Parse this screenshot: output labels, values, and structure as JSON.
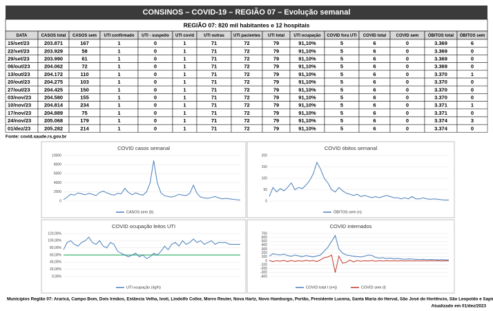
{
  "table": {
    "title": "CONSINOS – COVID-19 – REGIÃO 07 – Evolução semanal",
    "subtitle": "REGIÃO 07: 820 mil habitantes e 12 hospitais",
    "headers": [
      "DATA",
      "CASOS total",
      "CASOS sem",
      "UTI confirmado",
      "UTI - suspeito",
      "UTI covid",
      "UTI outras",
      "UTI pacientes",
      "UTI total",
      "UTI ocupação",
      "COVID fora UTI",
      "COVID total",
      "COVID sem",
      "ÓBITOS total",
      "ÓBITOS sem"
    ],
    "rows": [
      [
        "15/set/23",
        "203.871",
        "167",
        "1",
        "0",
        "1",
        "71",
        "72",
        "79",
        "91,10%",
        "5",
        "6",
        "0",
        "3.369",
        "6"
      ],
      [
        "22/set/23",
        "203.929",
        "58",
        "1",
        "0",
        "1",
        "71",
        "72",
        "79",
        "91,10%",
        "5",
        "6",
        "0",
        "3.369",
        "0"
      ],
      [
        "29/set/23",
        "203.990",
        "61",
        "1",
        "0",
        "1",
        "71",
        "72",
        "79",
        "91,10%",
        "5",
        "6",
        "0",
        "3.369",
        "0"
      ],
      [
        "06/out/23",
        "204.062",
        "72",
        "1",
        "0",
        "1",
        "71",
        "72",
        "79",
        "91,10%",
        "5",
        "6",
        "0",
        "3.369",
        "0"
      ],
      [
        "13/out/23",
        "204.172",
        "110",
        "1",
        "0",
        "1",
        "71",
        "72",
        "79",
        "91,10%",
        "5",
        "6",
        "0",
        "3.370",
        "1"
      ],
      [
        "20/out/23",
        "204.275",
        "103",
        "1",
        "0",
        "1",
        "71",
        "72",
        "79",
        "91,10%",
        "5",
        "6",
        "0",
        "3.370",
        "0"
      ],
      [
        "27/out/23",
        "204.425",
        "150",
        "1",
        "0",
        "1",
        "71",
        "72",
        "79",
        "91,10%",
        "5",
        "6",
        "0",
        "3.370",
        "0"
      ],
      [
        "03/nov/23",
        "204.580",
        "155",
        "1",
        "0",
        "1",
        "71",
        "72",
        "79",
        "91,10%",
        "5",
        "6",
        "0",
        "3.370",
        "0"
      ],
      [
        "10/nov/23",
        "204.814",
        "234",
        "1",
        "0",
        "1",
        "71",
        "72",
        "79",
        "91,10%",
        "5",
        "6",
        "0",
        "3.371",
        "1"
      ],
      [
        "17/nov/23",
        "204.889",
        "75",
        "1",
        "0",
        "1",
        "71",
        "72",
        "79",
        "91,10%",
        "5",
        "6",
        "0",
        "3.371",
        "0"
      ],
      [
        "24/nov/23",
        "205.068",
        "179",
        "1",
        "0",
        "1",
        "71",
        "72",
        "79",
        "91,10%",
        "5",
        "6",
        "0",
        "3.374",
        "3"
      ],
      [
        "01/dez/23",
        "205.282",
        "214",
        "1",
        "0",
        "1",
        "71",
        "72",
        "79",
        "91,10%",
        "5",
        "6",
        "0",
        "3.374",
        "0"
      ]
    ]
  },
  "source": "Fonte: covid.saude.rs.gov.br",
  "chart_data": [
    {
      "type": "line",
      "title": "COVID casos semanal",
      "ylim": [
        0,
        10000
      ],
      "yticks": [
        0,
        2000,
        4000,
        6000,
        8000,
        10000
      ],
      "grid": true,
      "series": [
        {
          "name": "CASOS sem (b)",
          "color": "#4a7ebb",
          "values": [
            300,
            900,
            1500,
            1300,
            1800,
            1600,
            1400,
            1700,
            1500,
            1200,
            1900,
            2200,
            1800,
            1500,
            1300,
            1700,
            1600,
            2800,
            1900,
            1400,
            1800,
            1500,
            1300,
            2000,
            4000,
            8900,
            4000,
            1800,
            1200,
            1000,
            900,
            1100,
            1500,
            1300,
            1200,
            1700,
            3500,
            1700,
            900,
            700,
            600,
            800,
            1000,
            700,
            500,
            600,
            500,
            400,
            300,
            250
          ]
        }
      ]
    },
    {
      "type": "line",
      "title": "COVID óbitos semanal",
      "ylim": [
        0,
        200
      ],
      "yticks": [
        0,
        50,
        100,
        150,
        200
      ],
      "grid": true,
      "series": [
        {
          "name": "ÓBITOS sem (n)",
          "color": "#4a7ebb",
          "values": [
            20,
            60,
            40,
            55,
            45,
            60,
            80,
            50,
            60,
            55,
            70,
            90,
            120,
            170,
            140,
            100,
            80,
            50,
            40,
            60,
            45,
            35,
            30,
            25,
            30,
            20,
            25,
            20,
            15,
            20,
            15,
            20,
            25,
            20,
            15,
            15,
            10,
            15,
            10,
            20,
            10,
            10,
            15,
            10,
            8,
            10,
            8,
            6,
            5,
            5
          ]
        }
      ]
    },
    {
      "type": "line",
      "title": "COVID ocupação leitos UTI",
      "ylim": [
        0,
        120
      ],
      "yticks": [
        {
          "value": 0,
          "label": "0,00%"
        },
        {
          "value": 20,
          "label": "20,00%"
        },
        {
          "value": 40,
          "label": "40,00%"
        },
        {
          "value": 60,
          "label": "60,00%"
        },
        {
          "value": 80,
          "label": "80,00%"
        },
        {
          "value": 100,
          "label": "100,00%"
        },
        {
          "value": 120,
          "label": "120,00%"
        }
      ],
      "grid": true,
      "series": [
        {
          "name": "UTI ocupação (i/g/h)",
          "color": "#4a7ebb",
          "values": [
            75,
            95,
            100,
            90,
            85,
            95,
            100,
            110,
            95,
            90,
            100,
            85,
            80,
            95,
            90,
            70,
            65,
            60,
            55,
            60,
            65,
            55,
            60,
            50,
            55,
            65,
            60,
            70,
            85,
            75,
            90,
            95,
            85,
            100,
            90,
            95,
            105,
            95,
            100,
            90,
            95,
            100,
            90,
            95,
            95,
            95,
            90,
            90,
            90,
            90
          ]
        }
      ],
      "reference": {
        "value": 60,
        "color": "#3cb371"
      }
    },
    {
      "type": "line",
      "title": "COVID internados",
      "ylim": [
        -400,
        700
      ],
      "yticks": [
        -400,
        -300,
        -200,
        -100,
        0,
        100,
        200,
        300,
        400,
        500,
        600,
        700
      ],
      "grid": true,
      "series": [
        {
          "name": "COVID total t (e+j)",
          "color": "#4a7ebb",
          "values": [
            120,
            180,
            160,
            150,
            170,
            140,
            120,
            150,
            130,
            110,
            140,
            120,
            100,
            130,
            150,
            250,
            350,
            500,
            650,
            300,
            200,
            150,
            140,
            120,
            110,
            100,
            120,
            150,
            140,
            90,
            70,
            80,
            60,
            70,
            55,
            60,
            50,
            40,
            50,
            45,
            40,
            35,
            40,
            30,
            35,
            30,
            25,
            30,
            25,
            25
          ]
        },
        {
          "name": "COVID sem (l)",
          "color": "#c0392b",
          "values": [
            10,
            -20,
            5,
            -10,
            15,
            -20,
            10,
            -15,
            5,
            -10,
            15,
            -5,
            10,
            -20,
            30,
            80,
            100,
            150,
            -300,
            120,
            -60,
            -40,
            20,
            -30,
            10,
            -10,
            5,
            -5,
            10,
            -10,
            5,
            -5,
            3,
            -3,
            5,
            -5,
            2,
            -2,
            3,
            -3,
            2,
            -2,
            3,
            -2,
            2,
            -1,
            2,
            -2,
            1,
            0
          ]
        }
      ]
    }
  ],
  "footer": "Municípios Região 07: Araricá, Campo Bom, Dois Irmãos, Estância Velha, Ivoti, Lindolfo Collor, Morro Reuter, Nova Hartz, Novo Hamburgo, Portão, Presidente Lucena, Santa Maria do Herval,  São José do Hortêncio, São Leopoldo e Sapiranga",
  "updated": "Atualizado em 01/dez/2023"
}
